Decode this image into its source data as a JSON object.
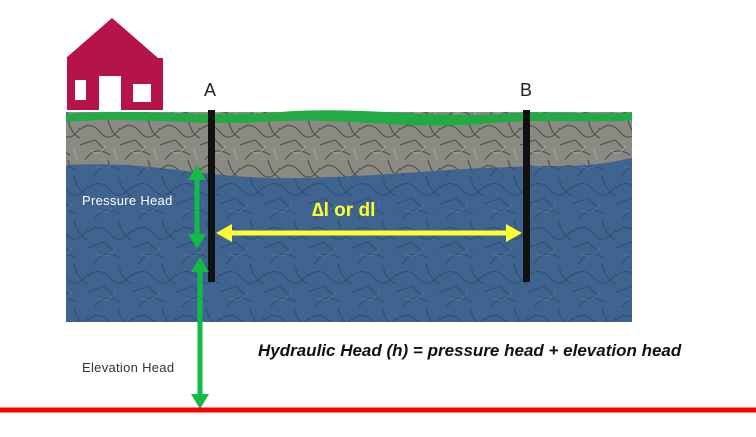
{
  "wells": {
    "a_label": "A",
    "b_label": "B"
  },
  "labels": {
    "pressure_head": "Pressure  Head",
    "distance": "∆l or dl",
    "elevation_head": "Elevation Head",
    "formula": "Hydraulic Head (h) = pressure head + elevation head"
  },
  "colors": {
    "ground_surface": "#22aa44",
    "unsaturated_rock": "#8a8a82",
    "aquifer_water": "#3d6390",
    "well_casing": "#111111",
    "head_arrows": "#11bb44",
    "distance_arrow": "#ffff33",
    "datum_line": "#ff0000",
    "house": "#b5134a"
  },
  "icons": {
    "house": "house-icon"
  }
}
